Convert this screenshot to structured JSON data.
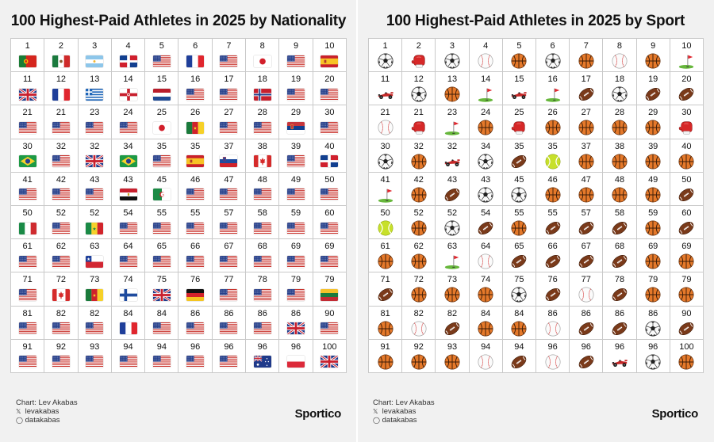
{
  "chart_data": [
    {
      "type": "table",
      "title": "100 Highest-Paid Athletes in 2025 by Nationality",
      "ranks": [
        "1",
        "2",
        "3",
        "4",
        "5",
        "6",
        "7",
        "8",
        "9",
        "10",
        "11",
        "12",
        "13",
        "14",
        "15",
        "16",
        "17",
        "18",
        "19",
        "20",
        "21",
        "21",
        "23",
        "24",
        "25",
        "26",
        "27",
        "28",
        "29",
        "30",
        "30",
        "32",
        "32",
        "34",
        "35",
        "35",
        "37",
        "38",
        "39",
        "40",
        "41",
        "42",
        "43",
        "43",
        "45",
        "46",
        "47",
        "48",
        "49",
        "50",
        "50",
        "52",
        "52",
        "54",
        "55",
        "55",
        "57",
        "58",
        "59",
        "60",
        "61",
        "62",
        "63",
        "64",
        "65",
        "66",
        "67",
        "68",
        "69",
        "69",
        "71",
        "72",
        "73",
        "74",
        "75",
        "76",
        "77",
        "78",
        "79",
        "79",
        "81",
        "82",
        "82",
        "84",
        "84",
        "86",
        "86",
        "86",
        "86",
        "90",
        "91",
        "92",
        "93",
        "94",
        "94",
        "96",
        "96",
        "96",
        "96",
        "100"
      ],
      "flags": [
        "portugal",
        "mexico",
        "argentina",
        "dominican-republic",
        "usa",
        "france",
        "usa",
        "japan",
        "usa",
        "spain",
        "uk",
        "france",
        "greece",
        "northern-ireland",
        "netherlands",
        "usa",
        "usa",
        "norway",
        "usa",
        "usa",
        "usa",
        "usa",
        "usa",
        "usa",
        "japan",
        "cameroon",
        "usa",
        "usa",
        "serbia",
        "usa",
        "brazil",
        "usa",
        "uk",
        "brazil",
        "usa",
        "spain",
        "slovenia",
        "canada",
        "usa",
        "dominican-republic",
        "usa",
        "usa",
        "usa",
        "egypt",
        "algeria",
        "usa",
        "usa",
        "usa",
        "usa",
        "usa",
        "italy",
        "usa",
        "senegal",
        "usa",
        "usa",
        "usa",
        "usa",
        "usa",
        "usa",
        "usa",
        "usa",
        "usa",
        "chile",
        "usa",
        "usa",
        "usa",
        "usa",
        "usa",
        "usa",
        "usa",
        "usa",
        "canada",
        "cameroon",
        "finland",
        "uk",
        "germany",
        "usa",
        "usa",
        "usa",
        "lithuania",
        "usa",
        "usa",
        "usa",
        "france",
        "usa",
        "usa",
        "usa",
        "usa",
        "uk",
        "usa",
        "usa",
        "usa",
        "usa",
        "usa",
        "usa",
        "usa",
        "usa",
        "australia",
        "poland",
        "uk"
      ]
    },
    {
      "type": "table",
      "title": "100 Highest-Paid Athletes in 2025 by Sport",
      "ranks": [
        "1",
        "2",
        "3",
        "4",
        "5",
        "6",
        "7",
        "8",
        "9",
        "10",
        "11",
        "12",
        "13",
        "14",
        "15",
        "16",
        "17",
        "18",
        "19",
        "20",
        "21",
        "21",
        "23",
        "24",
        "25",
        "26",
        "27",
        "28",
        "29",
        "30",
        "30",
        "32",
        "32",
        "34",
        "35",
        "35",
        "37",
        "38",
        "39",
        "40",
        "41",
        "42",
        "43",
        "43",
        "45",
        "46",
        "47",
        "48",
        "49",
        "50",
        "50",
        "52",
        "52",
        "54",
        "55",
        "55",
        "57",
        "58",
        "59",
        "60",
        "61",
        "62",
        "63",
        "64",
        "65",
        "66",
        "67",
        "68",
        "69",
        "69",
        "71",
        "72",
        "73",
        "74",
        "75",
        "76",
        "77",
        "78",
        "79",
        "79",
        "81",
        "82",
        "82",
        "84",
        "84",
        "86",
        "86",
        "86",
        "86",
        "90",
        "91",
        "92",
        "93",
        "94",
        "94",
        "96",
        "96",
        "96",
        "96",
        "100"
      ],
      "sports": [
        "soccer",
        "boxing",
        "soccer",
        "baseball",
        "basketball",
        "soccer",
        "basketball",
        "baseball",
        "basketball",
        "golf",
        "racing",
        "soccer",
        "basketball",
        "golf",
        "racing",
        "golf",
        "football",
        "soccer",
        "football",
        "football",
        "baseball",
        "boxing",
        "golf",
        "basketball",
        "boxing",
        "basketball",
        "basketball",
        "basketball",
        "basketball",
        "boxing",
        "soccer",
        "basketball",
        "racing",
        "soccer",
        "football",
        "tennis",
        "basketball",
        "basketball",
        "basketball",
        "basketball",
        "golf",
        "basketball",
        "football",
        "soccer",
        "soccer",
        "basketball",
        "basketball",
        "basketball",
        "basketball",
        "football",
        "tennis",
        "basketball",
        "soccer",
        "football",
        "basketball",
        "football",
        "football",
        "football",
        "basketball",
        "football",
        "basketball",
        "basketball",
        "golf",
        "baseball",
        "football",
        "football",
        "football",
        "football",
        "basketball",
        "basketball",
        "football",
        "basketball",
        "basketball",
        "basketball",
        "soccer",
        "football",
        "baseball",
        "football",
        "basketball",
        "basketball",
        "basketball",
        "baseball",
        "football",
        "basketball",
        "basketball",
        "baseball",
        "football",
        "football",
        "soccer",
        "football",
        "basketball",
        "basketball",
        "basketball",
        "baseball",
        "football",
        "baseball",
        "football",
        "racing",
        "soccer",
        "basketball"
      ]
    }
  ],
  "footer": {
    "chart_credit": "Chart: Lev Akabas",
    "twitter_handle": "levakabas",
    "instagram_handle": "datakabas",
    "brand": "Sportico"
  }
}
